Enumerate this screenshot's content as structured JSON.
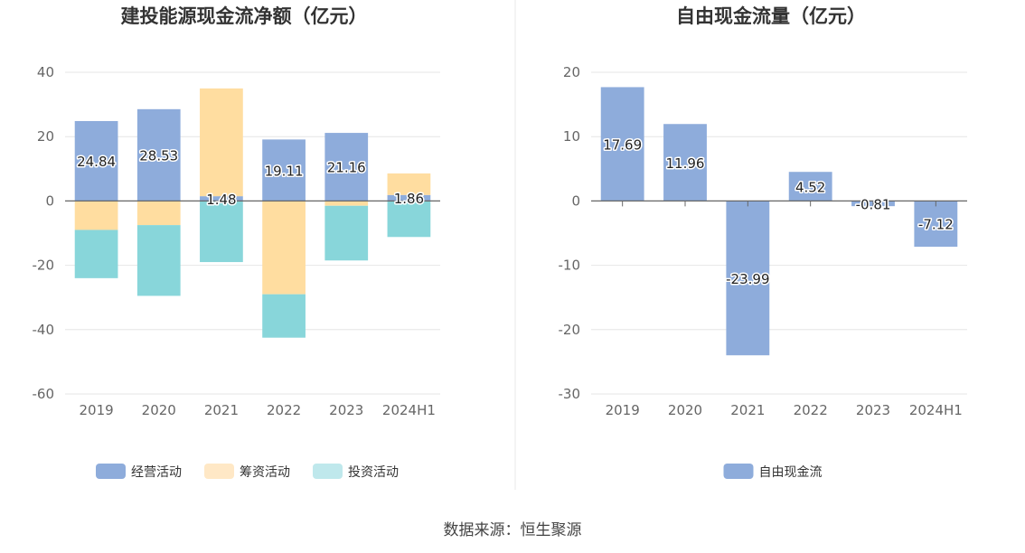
{
  "source": "数据来源：恒生聚源",
  "colors": {
    "operating": "#8eacdb",
    "financing": "#ffdda0",
    "investing": "#88d6da",
    "free_cf": "#8eacdb",
    "legend_financing": "#ffe8c6",
    "legend_investing": "#bfe8ec",
    "grid": "#e6e6e6",
    "axis": "#666666",
    "divider": "#e8e8e8"
  },
  "chart_data": [
    {
      "type": "bar",
      "title": "建投能源现金流净额（亿元）",
      "categories": [
        "2019",
        "2020",
        "2021",
        "2022",
        "2023",
        "2024H1"
      ],
      "ylim": [
        -60,
        40
      ],
      "yticks": [
        40,
        20,
        0,
        -20,
        -40,
        -60
      ],
      "grid": true,
      "legend_position": "bottom",
      "series": [
        {
          "name": "经营活动",
          "values": [
            24.84,
            28.53,
            1.48,
            19.11,
            21.16,
            1.86
          ]
        },
        {
          "name": "筹资活动",
          "values": [
            -9.0,
            -7.5,
            33.5,
            -29.0,
            -1.5,
            6.7
          ]
        },
        {
          "name": "投资活动",
          "values": [
            -15.0,
            -22.0,
            -19.0,
            -13.5,
            -17.0,
            -11.2
          ]
        }
      ],
      "data_labels": [
        "24.84",
        "28.53",
        "1.48",
        "19.11",
        "21.16",
        "1.86"
      ]
    },
    {
      "type": "bar",
      "title": "自由现金流量（亿元）",
      "categories": [
        "2019",
        "2020",
        "2021",
        "2022",
        "2023",
        "2024H1"
      ],
      "ylim": [
        -30,
        20
      ],
      "yticks": [
        20,
        10,
        0,
        -10,
        -20,
        -30
      ],
      "grid": true,
      "legend_position": "bottom",
      "series": [
        {
          "name": "自由现金流",
          "values": [
            17.69,
            11.96,
            -23.99,
            4.52,
            -0.81,
            -7.12
          ]
        }
      ],
      "data_labels": [
        "17.69",
        "11.96",
        "-23.99",
        "4.52",
        "-0.81",
        "-7.12"
      ]
    }
  ]
}
